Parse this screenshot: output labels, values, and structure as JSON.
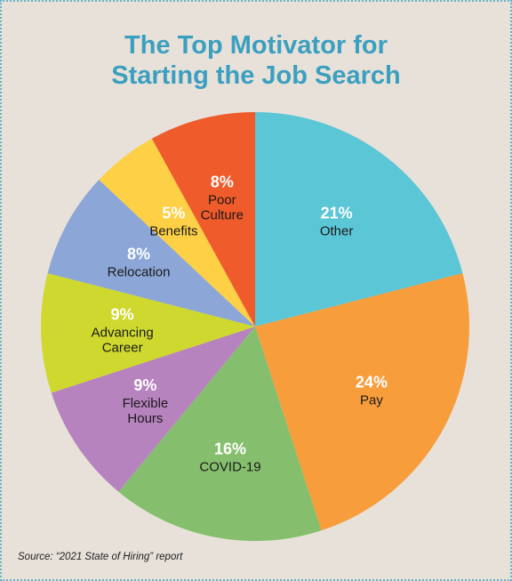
{
  "title_lines": [
    "The Top Motivator for",
    "Starting the Job Search"
  ],
  "source": "Source: “2021 State of Hiring” report",
  "chart_data": {
    "type": "pie",
    "title": "The Top Motivator for Starting the Job Search",
    "start_angle_deg": 0,
    "direction": "clockwise",
    "slices": [
      {
        "label": "Other",
        "label_lines": [
          "Other"
        ],
        "value": 21,
        "value_label": "21%",
        "color": "#5bc6d5"
      },
      {
        "label": "Pay",
        "label_lines": [
          "Pay"
        ],
        "value": 24,
        "value_label": "24%",
        "color": "#f79d3b"
      },
      {
        "label": "COVID-19",
        "label_lines": [
          "COVID-19"
        ],
        "value": 16,
        "value_label": "16%",
        "color": "#85bf6d"
      },
      {
        "label": "Flexible Hours",
        "label_lines": [
          "Flexible",
          "Hours"
        ],
        "value": 9,
        "value_label": "9%",
        "color": "#b683be"
      },
      {
        "label": "Advancing Career",
        "label_lines": [
          "Advancing",
          "Career"
        ],
        "value": 9,
        "value_label": "9%",
        "color": "#cfd82e"
      },
      {
        "label": "Relocation",
        "label_lines": [
          "Relocation"
        ],
        "value": 8,
        "value_label": "8%",
        "color": "#8ba6d7"
      },
      {
        "label": "Benefits",
        "label_lines": [
          "Benefits"
        ],
        "value": 5,
        "value_label": "5%",
        "color": "#fdd045"
      },
      {
        "label": "Poor Culture",
        "label_lines": [
          "Poor",
          "Culture"
        ],
        "value": 8,
        "value_label": "8%",
        "color": "#ef5b2b"
      }
    ]
  }
}
